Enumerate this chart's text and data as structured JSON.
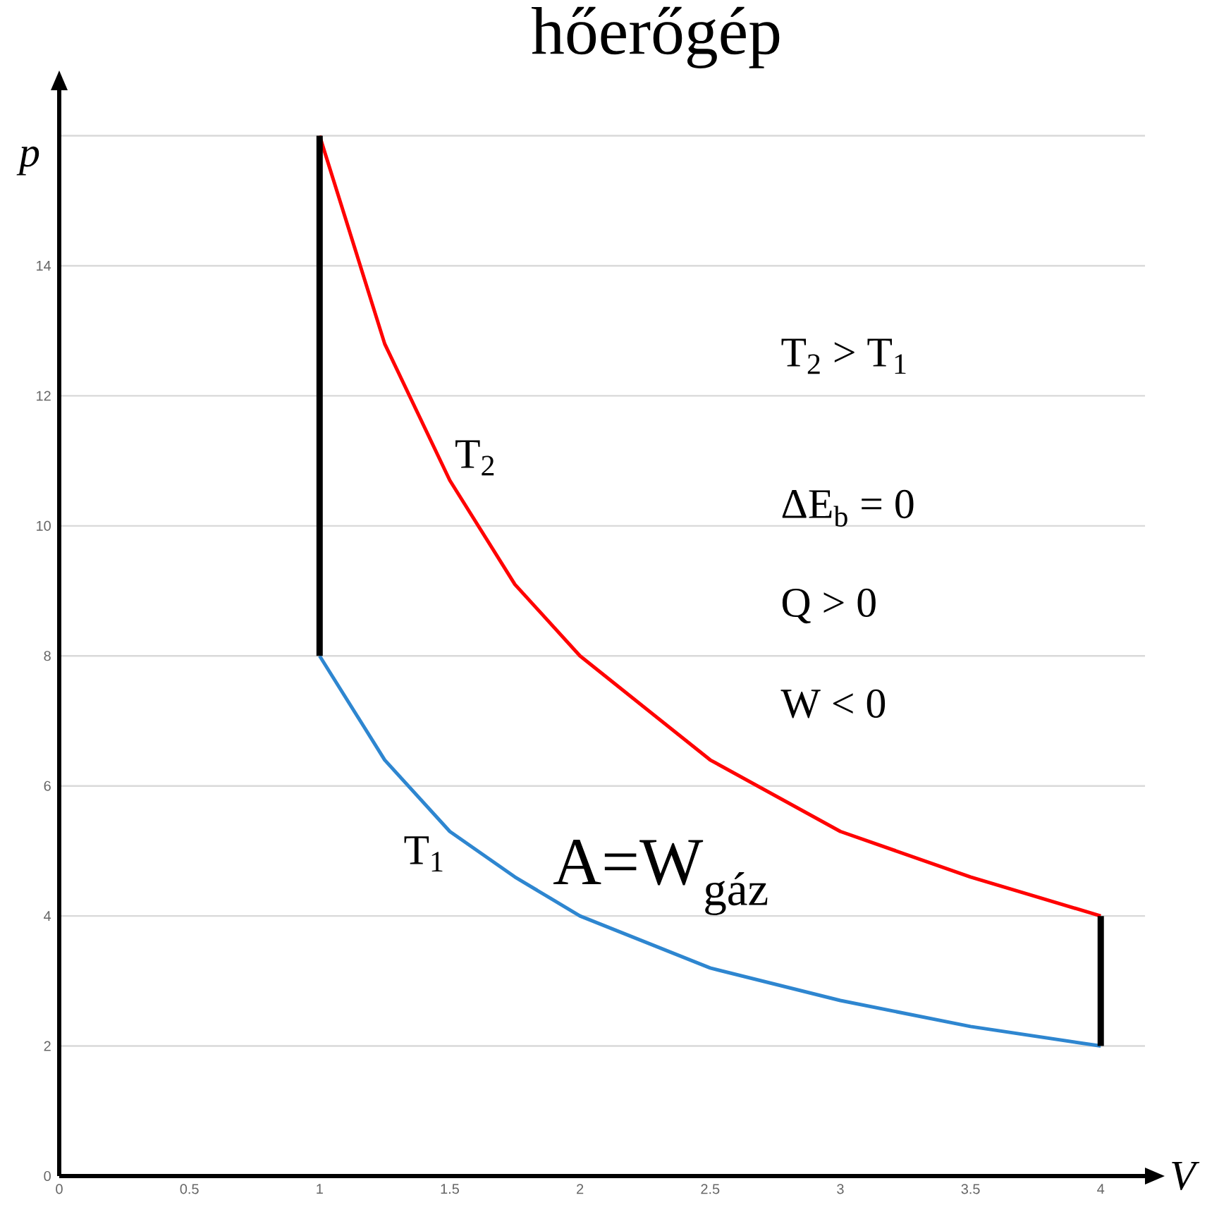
{
  "chart_data": {
    "type": "line",
    "title": "hőerőgép",
    "xlabel": "V",
    "ylabel": "p",
    "xlim": [
      0,
      4.17
    ],
    "ylim": [
      0,
      16.7
    ],
    "xticks": [
      0,
      0.5,
      1,
      1.5,
      2,
      2.5,
      3,
      3.5,
      4
    ],
    "yticks": [
      0,
      2,
      4,
      6,
      8,
      10,
      12,
      14,
      {
        "value": 16,
        "label": null
      }
    ],
    "grid": "y",
    "marker": "none",
    "series": [
      {
        "name": "T$_{2}$",
        "color": "#ff0000",
        "x": [
          1,
          1.25,
          1.5,
          1.75,
          2,
          2.5,
          3,
          3.5,
          4
        ],
        "values": [
          16,
          12.8,
          10.7,
          9.1,
          8,
          6.4,
          5.3,
          4.6,
          4
        ]
      },
      {
        "name": "T$_{1}$",
        "color": "#2e86d0",
        "x": [
          4,
          3.5,
          3,
          2.5,
          2,
          1.75,
          1.5,
          1.25,
          1
        ],
        "values": [
          2,
          2.3,
          2.7,
          3.2,
          4,
          4.6,
          5.3,
          6.4,
          8
        ]
      },
      {
        "color": "#000000",
        "x": [
          1,
          1
        ],
        "values": [
          8,
          16
        ]
      },
      {
        "color": "#000000",
        "x": [
          4,
          4
        ],
        "values": [
          4,
          2
        ]
      }
    ],
    "annotations": [
      "T$_{2}$ > T$_{1}$",
      "ΔE$_{b}$ = 0",
      "Q > 0",
      "W < 0",
      "A=W$_{gáz}$"
    ]
  }
}
